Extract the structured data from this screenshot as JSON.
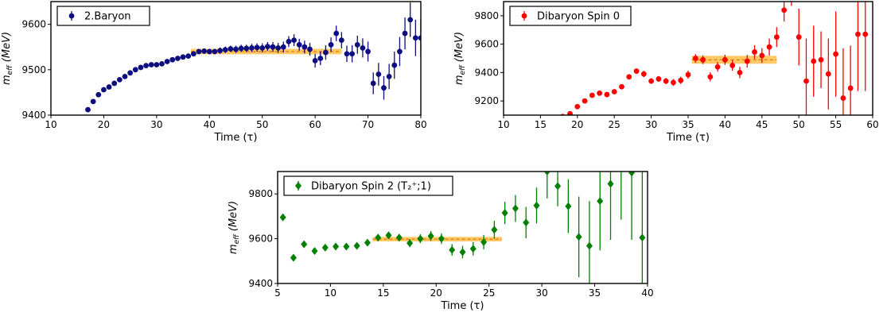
{
  "chart_data": [
    {
      "type": "scatter",
      "xlabel": "Time (τ)",
      "ylabel_main": "m",
      "ylabel_sub": "eff",
      "ylabel_unit": "(MeV)",
      "xlim": [
        10,
        80
      ],
      "ylim": [
        9400,
        9650
      ],
      "xticks": [
        10,
        20,
        30,
        40,
        50,
        60,
        70,
        80
      ],
      "yticks": [
        9400,
        9500,
        9600
      ],
      "legend": "top-left",
      "marker": "circle",
      "color": "#0d0d80",
      "series": [
        {
          "name": "2.Baryon",
          "x": [
            17,
            18,
            19,
            20,
            21,
            22,
            23,
            24,
            25,
            26,
            27,
            28,
            29,
            30,
            31,
            32,
            33,
            34,
            35,
            36,
            37,
            38,
            39,
            40,
            41,
            42,
            43,
            44,
            45,
            46,
            47,
            48,
            49,
            50,
            51,
            52,
            53,
            54,
            55,
            56,
            57,
            58,
            59,
            60,
            61,
            62,
            63,
            64,
            65,
            66,
            67,
            68,
            69,
            70,
            71,
            72,
            73,
            74,
            75,
            76,
            77,
            78,
            79,
            80
          ],
          "y": [
            9412,
            9430,
            9445,
            9456,
            9462,
            9470,
            9478,
            9485,
            9493,
            9500,
            9505,
            9509,
            9511,
            9511,
            9513,
            9518,
            9522,
            9525,
            9528,
            9530,
            9535,
            9540,
            9541,
            9540,
            9540,
            9542,
            9544,
            9546,
            9545,
            9547,
            9547,
            9548,
            9549,
            9548,
            9551,
            9550,
            9548,
            9550,
            9562,
            9565,
            9555,
            9550,
            9545,
            9520,
            9525,
            9538,
            9555,
            9580,
            9565,
            9535,
            9535,
            9555,
            9548,
            9540,
            9470,
            9490,
            9460,
            9485,
            9510,
            9540,
            9580,
            9610,
            9570,
            9570
          ],
          "err": [
            3,
            4,
            4,
            4,
            4,
            4,
            4,
            4,
            4,
            4,
            4,
            4,
            4,
            4,
            4,
            4,
            4,
            4,
            4,
            4,
            5,
            5,
            6,
            6,
            6,
            7,
            7,
            7,
            8,
            8,
            8,
            9,
            9,
            10,
            10,
            11,
            11,
            12,
            12,
            13,
            13,
            14,
            14,
            15,
            15,
            16,
            16,
            17,
            18,
            18,
            19,
            20,
            21,
            22,
            24,
            25,
            26,
            28,
            30,
            32,
            35,
            38,
            40,
            42
          ]
        }
      ],
      "band": {
        "x": [
          36.5,
          65
        ],
        "y": 9540,
        "halfwidth": 6
      }
    },
    {
      "type": "scatter",
      "xlabel": "Time (τ)",
      "ylabel_main": "m",
      "ylabel_sub": "eff",
      "ylabel_unit": "(MeV)",
      "xlim": [
        10,
        60
      ],
      "ylim": [
        9100,
        9900
      ],
      "xticks": [
        10,
        15,
        20,
        25,
        30,
        35,
        40,
        45,
        50,
        55,
        60
      ],
      "yticks": [
        9200,
        9400,
        9600,
        9800
      ],
      "legend": "top-left",
      "marker": "circle",
      "color": "#ff0000",
      "series": [
        {
          "name": "Dibaryon Spin 0",
          "x": [
            18,
            19,
            20,
            21,
            22,
            23,
            24,
            25,
            26,
            27,
            28,
            29,
            30,
            31,
            32,
            33,
            34,
            35,
            36,
            37,
            38,
            39,
            40,
            41,
            42,
            43,
            44,
            45,
            46,
            47,
            48,
            49,
            50,
            51,
            52,
            53,
            54,
            55,
            56,
            57,
            58,
            59
          ],
          "y": [
            9090,
            9110,
            9160,
            9200,
            9240,
            9255,
            9245,
            9265,
            9300,
            9370,
            9410,
            9390,
            9340,
            9355,
            9340,
            9330,
            9345,
            9385,
            9500,
            9490,
            9370,
            9440,
            9490,
            9450,
            9400,
            9480,
            9545,
            9520,
            9580,
            9650,
            9840,
            9990,
            9650,
            9340,
            9480,
            9490,
            9390,
            9530,
            9220,
            9290,
            9670,
            9670
          ],
          "err": [
            10,
            10,
            10,
            10,
            12,
            12,
            12,
            14,
            16,
            18,
            20,
            22,
            20,
            20,
            22,
            24,
            26,
            28,
            30,
            30,
            32,
            34,
            36,
            38,
            40,
            44,
            48,
            52,
            60,
            70,
            80,
            120,
            200,
            300,
            250,
            200,
            250,
            300,
            350,
            300,
            400,
            400
          ]
        }
      ],
      "band": {
        "x": [
          35.5,
          47
        ],
        "y": 9490,
        "halfwidth": 28
      }
    },
    {
      "type": "scatter",
      "xlabel": "Time (τ)",
      "ylabel_main": "m",
      "ylabel_sub": "eff",
      "ylabel_unit": "(MeV)",
      "xlim": [
        5,
        40
      ],
      "ylim": [
        9400,
        9900
      ],
      "xticks": [
        5,
        10,
        15,
        20,
        25,
        30,
        35,
        40
      ],
      "yticks": [
        9400,
        9600,
        9800
      ],
      "legend": "top-left",
      "marker": "diamond",
      "color": "#008000",
      "series": [
        {
          "name": "Dibaryon Spin 2 (T₂⁺;1)",
          "x": [
            5.5,
            6.5,
            7.5,
            8.5,
            9.5,
            10.5,
            11.5,
            12.5,
            13.5,
            14.5,
            15.5,
            16.5,
            17.5,
            18.5,
            19.5,
            20.5,
            21.5,
            22.5,
            23.5,
            24.5,
            25.5,
            26.5,
            27.5,
            28.5,
            29.5,
            30.5,
            31.5,
            32.5,
            33.5,
            34.5,
            35.5,
            36.5,
            37.5,
            38.5,
            39.5
          ],
          "y": [
            9695,
            9515,
            9575,
            9545,
            9560,
            9565,
            9565,
            9568,
            9582,
            9605,
            9615,
            9605,
            9580,
            9600,
            9612,
            9600,
            9550,
            9540,
            9555,
            9585,
            9640,
            9715,
            9735,
            9672,
            9748,
            9900,
            9835,
            9745,
            9608,
            9568,
            9768,
            9845,
            9985,
            9895,
            9605
          ],
          "err": [
            4,
            6,
            6,
            8,
            8,
            10,
            10,
            12,
            12,
            14,
            16,
            16,
            18,
            20,
            22,
            24,
            26,
            28,
            30,
            32,
            40,
            50,
            60,
            70,
            80,
            120,
            90,
            120,
            180,
            200,
            220,
            250,
            300,
            300,
            350
          ]
        }
      ],
      "band": {
        "x": [
          14,
          26.2
        ],
        "y": 9598,
        "halfwidth": 10
      }
    }
  ]
}
